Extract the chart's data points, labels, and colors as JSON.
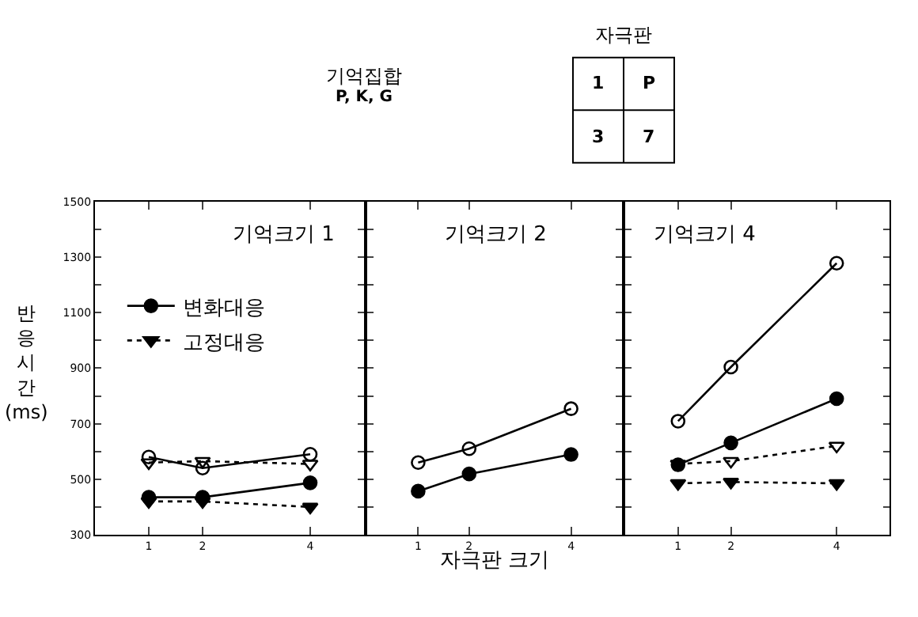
{
  "chart_data": [
    {
      "type": "line",
      "title": "기억크기 1",
      "ylabel": "반응시간 (ms)",
      "x": [
        1,
        2,
        4
      ],
      "xlim": [
        0,
        5
      ],
      "xticks": [
        1,
        2,
        4
      ],
      "ylim": [
        300,
        1500
      ],
      "yticks": [
        300,
        {
          "value": 400,
          "label": null
        },
        500,
        {
          "value": 600,
          "label": null
        },
        700,
        {
          "value": 800,
          "label": null
        },
        900,
        {
          "value": 1000,
          "label": null
        },
        1100,
        {
          "value": 1200,
          "label": null
        },
        1300,
        {
          "value": 1400,
          "label": null
        },
        1500
      ],
      "legend": "top left",
      "grid": false,
      "series": [
        {
          "name": "변화대응",
          "color": "#000000",
          "marker": "circle",
          "line_style": "solid",
          "values": [
            435,
            435,
            487
          ]
        },
        {
          "color": "#000000",
          "marker": "circle-open",
          "line_style": "solid",
          "values": [
            580,
            540,
            590
          ]
        },
        {
          "name": "고정대응",
          "color": "#000000",
          "marker": "triangle-down",
          "line_style": "dotted",
          "values": [
            420,
            420,
            400
          ]
        },
        {
          "color": "#000000",
          "marker": "triangle-down-open",
          "line_style": "dotted",
          "values": [
            560,
            565,
            555
          ]
        }
      ]
    },
    {
      "type": "line",
      "title": "기억크기 2",
      "xlabel": "자극판 크기",
      "x": [
        1,
        2,
        4
      ],
      "xlim": [
        0,
        5
      ],
      "xticks": [
        1,
        2,
        4
      ],
      "ylim": [
        300,
        1500
      ],
      "yticks": [
        300,
        {
          "value": 400,
          "label": null
        },
        500,
        {
          "value": 600,
          "label": null
        },
        700,
        {
          "value": 800,
          "label": null
        },
        900,
        {
          "value": 1000,
          "label": null
        },
        1100,
        {
          "value": 1200,
          "label": null
        },
        1300,
        {
          "value": 1400,
          "label": null
        },
        1500
      ],
      "tick_labels": "x",
      "grid": false,
      "annotations": [
        "기억집합",
        "P, K, G",
        "자극판",
        "1",
        "P",
        "3",
        "7"
      ],
      "series": [
        {
          "color": "#000000",
          "marker": "circle",
          "line_style": "solid",
          "values": [
            457,
            519,
            589
          ]
        },
        {
          "color": "#000000",
          "marker": "circle-open",
          "line_style": "solid",
          "values": [
            560,
            610,
            754
          ]
        }
      ]
    },
    {
      "type": "line",
      "title": "기억크기 4",
      "x": [
        1,
        2,
        4
      ],
      "xlim": [
        0,
        5
      ],
      "xticks": [
        1,
        2,
        4
      ],
      "ylim": [
        300,
        1500
      ],
      "yticks": [
        300,
        {
          "value": 400,
          "label": null
        },
        500,
        {
          "value": 600,
          "label": null
        },
        700,
        {
          "value": 800,
          "label": null
        },
        900,
        {
          "value": 1000,
          "label": null
        },
        1100,
        {
          "value": 1200,
          "label": null
        },
        1300,
        {
          "value": 1400,
          "label": null
        },
        1500
      ],
      "tick_labels": "x",
      "grid": false,
      "series": [
        {
          "color": "#000000",
          "marker": "circle",
          "line_style": "solid",
          "values": [
            552,
            631,
            790
          ]
        },
        {
          "color": "#000000",
          "marker": "circle-open",
          "line_style": "solid",
          "values": [
            709,
            904,
            1278
          ]
        },
        {
          "color": "#000000",
          "marker": "triangle-down",
          "line_style": "dotted",
          "values": [
            485,
            490,
            485
          ]
        },
        {
          "color": "#000000",
          "marker": "triangle-down-open",
          "line_style": "dotted",
          "values": [
            555,
            565,
            620
          ]
        }
      ]
    }
  ]
}
